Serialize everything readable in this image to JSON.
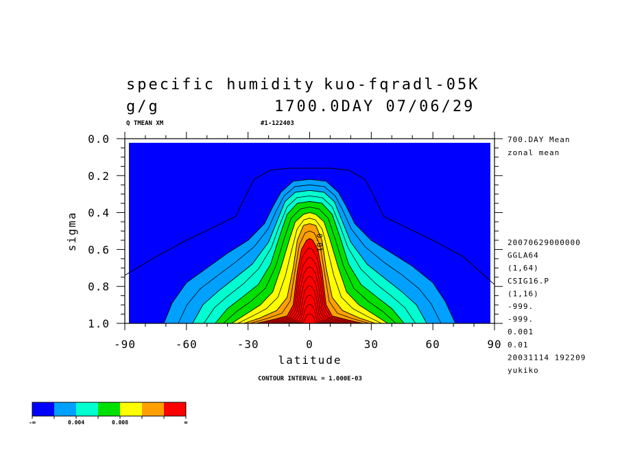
{
  "header": {
    "title_left": "specific humidity",
    "title_right": "kuo-fqradl-05K",
    "units": "g/g",
    "time_label": "1700.0DAY 07/06/29",
    "var_label": "Q TMEAN XM",
    "id_label": "#1-122403"
  },
  "side_info": {
    "top": [
      "700.DAY Mean",
      "zonal mean"
    ],
    "bottom": [
      "20070629000000",
      "GGLA64",
      "(1,64)",
      "CSIG16.P",
      "(1,16)",
      "-999.",
      "-999.",
      "0.001",
      "0.01",
      "20031114 192209",
      "yukiko"
    ]
  },
  "contour_interval": "CONTOUR INTERVAL = 1.000E-03",
  "contour_label": "0.01",
  "chart_data": {
    "type": "contour",
    "title": "specific humidity",
    "xlabel": "latitude",
    "ylabel": "sigma",
    "xlim": [
      -90,
      90
    ],
    "ylim": [
      1.0,
      0.0
    ],
    "x_ticks": [
      -90,
      -60,
      -30,
      0,
      30,
      60,
      90
    ],
    "x_tick_labels": [
      "-90",
      "-60",
      "-30",
      "0",
      "30",
      "60",
      "90"
    ],
    "y_ticks": [
      0.0,
      0.2,
      0.4,
      0.6,
      0.8,
      1.0
    ],
    "y_tick_labels": [
      "0.0",
      "0.2",
      "0.4",
      "0.6",
      "0.8",
      "1.0"
    ],
    "contour_interval": 0.001,
    "fill_levels": [
      {
        "value": 0.002,
        "color": "#00a0ff",
        "shape": [
          [
            -71,
            1.0
          ],
          [
            -67,
            0.89
          ],
          [
            -60,
            0.78
          ],
          [
            -50,
            0.7
          ],
          [
            -40,
            0.62
          ],
          [
            -30,
            0.55
          ],
          [
            -22,
            0.46
          ],
          [
            -18,
            0.37
          ],
          [
            -14,
            0.29
          ],
          [
            -8,
            0.23
          ],
          [
            0,
            0.22
          ],
          [
            8,
            0.23
          ],
          [
            14,
            0.29
          ],
          [
            18,
            0.37
          ],
          [
            22,
            0.46
          ],
          [
            30,
            0.55
          ],
          [
            40,
            0.62
          ],
          [
            50,
            0.69
          ],
          [
            60,
            0.78
          ],
          [
            66,
            0.88
          ],
          [
            71,
            1.0
          ]
        ]
      },
      {
        "value": 0.004,
        "color": "#00ffd0",
        "shape": [
          [
            -57,
            1.0
          ],
          [
            -52,
            0.9
          ],
          [
            -45,
            0.83
          ],
          [
            -37,
            0.76
          ],
          [
            -28,
            0.68
          ],
          [
            -20,
            0.56
          ],
          [
            -16,
            0.45
          ],
          [
            -12,
            0.34
          ],
          [
            -7,
            0.29
          ],
          [
            0,
            0.28
          ],
          [
            7,
            0.29
          ],
          [
            12,
            0.34
          ],
          [
            16,
            0.45
          ],
          [
            20,
            0.56
          ],
          [
            28,
            0.68
          ],
          [
            37,
            0.76
          ],
          [
            45,
            0.83
          ],
          [
            52,
            0.9
          ],
          [
            57,
            1.0
          ]
        ]
      },
      {
        "value": 0.006,
        "color": "#00e000",
        "shape": [
          [
            -46,
            1.0
          ],
          [
            -40,
            0.92
          ],
          [
            -33,
            0.86
          ],
          [
            -25,
            0.79
          ],
          [
            -19,
            0.68
          ],
          [
            -15,
            0.54
          ],
          [
            -11,
            0.41
          ],
          [
            -6,
            0.35
          ],
          [
            0,
            0.34
          ],
          [
            6,
            0.35
          ],
          [
            11,
            0.41
          ],
          [
            15,
            0.54
          ],
          [
            19,
            0.68
          ],
          [
            25,
            0.79
          ],
          [
            33,
            0.86
          ],
          [
            40,
            0.92
          ],
          [
            46,
            1.0
          ]
        ]
      },
      {
        "value": 0.008,
        "color": "#ffff00",
        "shape": [
          [
            -38,
            1.0
          ],
          [
            -31,
            0.95
          ],
          [
            -24,
            0.9
          ],
          [
            -18,
            0.83
          ],
          [
            -14,
            0.7
          ],
          [
            -10,
            0.55
          ],
          [
            -7,
            0.45
          ],
          [
            -3,
            0.41
          ],
          [
            0,
            0.4
          ],
          [
            3,
            0.41
          ],
          [
            7,
            0.45
          ],
          [
            10,
            0.55
          ],
          [
            14,
            0.7
          ],
          [
            18,
            0.83
          ],
          [
            24,
            0.9
          ],
          [
            31,
            0.95
          ],
          [
            38,
            1.0
          ]
        ]
      },
      {
        "value": 0.01,
        "color": "#ffa000",
        "shape": [
          [
            -32,
            1.0
          ],
          [
            -24,
            0.97
          ],
          [
            -16,
            0.93
          ],
          [
            -11,
            0.86
          ],
          [
            -8,
            0.7
          ],
          [
            -6,
            0.55
          ],
          [
            -3,
            0.47
          ],
          [
            0,
            0.46
          ],
          [
            3,
            0.47
          ],
          [
            6,
            0.55
          ],
          [
            8,
            0.7
          ],
          [
            11,
            0.86
          ],
          [
            16,
            0.93
          ],
          [
            24,
            0.97
          ],
          [
            32,
            1.0
          ]
        ]
      },
      {
        "value": 0.012,
        "color": "#ff0000",
        "shape": [
          [
            -26,
            1.0
          ],
          [
            -18,
            0.98
          ],
          [
            -11,
            0.96
          ],
          [
            -8,
            0.9
          ],
          [
            -6,
            0.72
          ],
          [
            -4,
            0.6
          ],
          [
            -1.5,
            0.55
          ],
          [
            0,
            0.54
          ],
          [
            1.5,
            0.55
          ],
          [
            4,
            0.6
          ],
          [
            6,
            0.72
          ],
          [
            8,
            0.9
          ],
          [
            11,
            0.96
          ],
          [
            18,
            0.98
          ],
          [
            26,
            1.0
          ]
        ]
      }
    ],
    "outer_contour": {
      "value": 0.001,
      "shape": [
        [
          -90,
          0.74
        ],
        [
          -75,
          0.64
        ],
        [
          -60,
          0.55
        ],
        [
          -45,
          0.47
        ],
        [
          -36,
          0.42
        ],
        [
          -33,
          0.35
        ],
        [
          -27,
          0.22
        ],
        [
          -19,
          0.17
        ],
        [
          -10,
          0.16
        ],
        [
          0,
          0.16
        ],
        [
          10,
          0.16
        ],
        [
          19,
          0.17
        ],
        [
          27,
          0.22
        ],
        [
          33,
          0.35
        ],
        [
          36,
          0.42
        ],
        [
          45,
          0.47
        ],
        [
          60,
          0.55
        ],
        [
          75,
          0.64
        ],
        [
          90,
          0.79
        ]
      ]
    },
    "background_color": "#0000ff",
    "colorbar": {
      "colors": [
        "#0000ff",
        "#00a0ff",
        "#00ffd0",
        "#00e000",
        "#ffff00",
        "#ffa000",
        "#ff0000"
      ],
      "labels": [
        "-∞",
        "0.004",
        "0.008",
        "∞"
      ]
    }
  }
}
